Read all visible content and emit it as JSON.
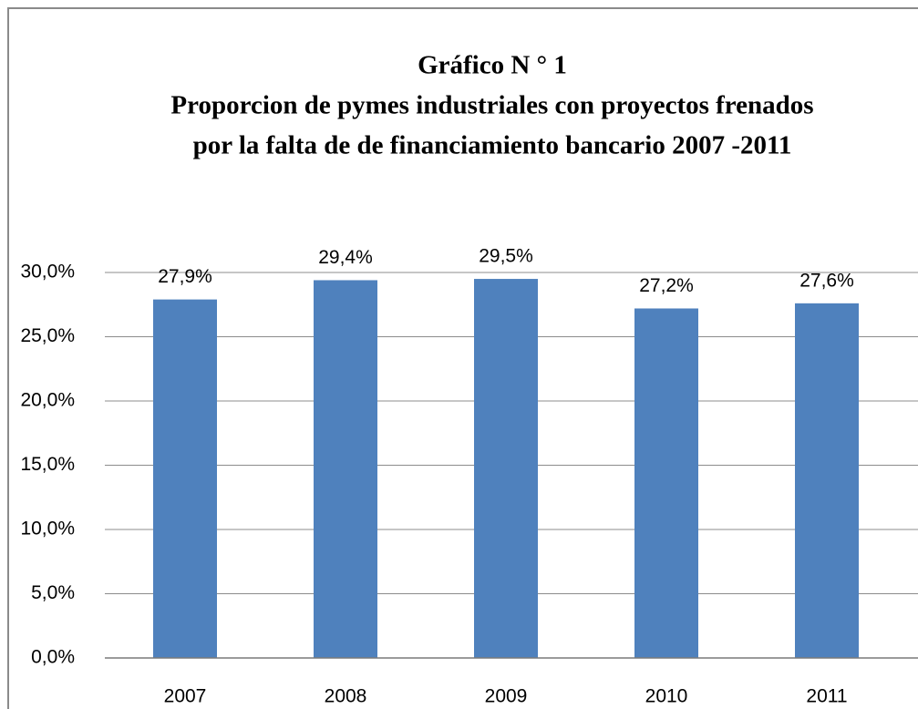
{
  "chart_data": {
    "type": "bar",
    "title": [
      "Gráfico N ° 1",
      "Proporcion de pymes industriales con proyectos frenados",
      "por la falta de de financiamiento bancario 2007 -2011"
    ],
    "categories": [
      "2007",
      "2008",
      "2009",
      "2010",
      "2011"
    ],
    "values": [
      27.9,
      29.4,
      29.5,
      27.2,
      27.6
    ],
    "value_labels": [
      "27,9%",
      "29,4%",
      "29,5%",
      "27,2%",
      "27,6%"
    ],
    "color": "#4f81bd",
    "ylim": [
      0,
      30
    ],
    "yticks": [
      {
        "value": 0,
        "label": "0,0%"
      },
      {
        "value": 5,
        "label": "5,0%"
      },
      {
        "value": 10,
        "label": "10,0%"
      },
      {
        "value": 15,
        "label": "15,0%"
      },
      {
        "value": 20,
        "label": "20,0%"
      },
      {
        "value": 25,
        "label": "25,0%"
      },
      {
        "value": 30,
        "label": "30,0%"
      }
    ],
    "grid": true
  }
}
